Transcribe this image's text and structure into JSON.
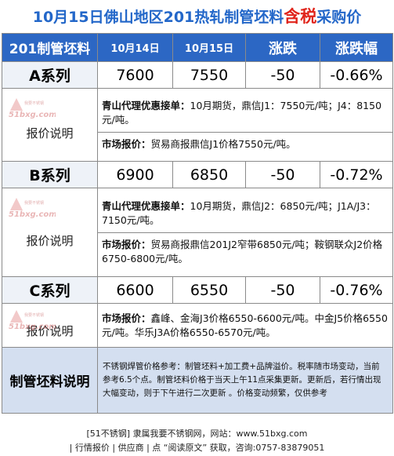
{
  "title": {
    "main": "10月15日佛山地区201热轧制管坯料",
    "highlight": "含税",
    "suffix": "采购价"
  },
  "header": {
    "col1": "201制管坯料",
    "col2": "10月14日",
    "col3": "10月15日",
    "col4": "涨跌",
    "col5": "涨跌幅"
  },
  "logo_text": "51bxg.com",
  "logo_small": "我要不锈钢",
  "report_label": "报价说明",
  "rows": [
    {
      "name": "A系列",
      "prev": "7600",
      "curr": "7550",
      "change": "-50",
      "pct": "-0.66%",
      "agent_label": "青山代理优惠接单：",
      "agent_text": "10月期货，鼎信J1：7550元/吨；J4：8150元/吨。",
      "market_label": "市场报价：",
      "market_text": "贸易商报鼎信J1价格7550元/吨。"
    },
    {
      "name": "B系列",
      "prev": "6900",
      "curr": "6850",
      "change": "-50",
      "pct": "-0.72%",
      "agent_label": "青山代理优惠接单：",
      "agent_text": "10月期货，鼎信J2：6850元/吨；J1A/J3：7150元/吨。",
      "market_label": "市场报价：",
      "market_text": "贸易商报鼎信201J2窄带6850元/吨；鞍钢联众J2价格6750-6800元/吨。"
    },
    {
      "name": "C系列",
      "prev": "6600",
      "curr": "6550",
      "change": "-50",
      "pct": "-0.76%",
      "market_label": "市场报价：",
      "market_text": "鑫峰、金海J3价格6550-6600元/吨。中金J5价格6550元/吨。华乐J3A价格6550-6570元/吨。"
    }
  ],
  "note": {
    "label": "制管坯料说明",
    "text": "不锈钢焊管价格参考：制管坯料+加工费+品牌溢价。税率随市场变动，当前参考6.5个点。制管坯料价格于当天上午11点采集更新。更新后，若行情出现大幅变动，则于下午进行二次更新 。价格变动频繁，仅供参考"
  },
  "footer": {
    "line1": "[51不锈钢] 隶属我要不锈钢网，网站：www.51bxg.com",
    "line2": "| 行情报价 | 供应商 | 点 “阅读原文” 获取，咨询:0757-83879051"
  },
  "colors": {
    "title_blue": "#2367c9",
    "title_red": "#e0241b",
    "header_bg": "#2c67c4",
    "note_bg": "#d4dff0"
  }
}
